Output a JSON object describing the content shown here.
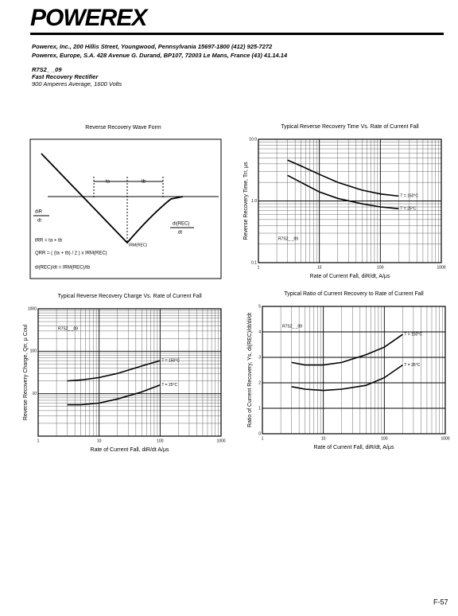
{
  "header": {
    "logo": "POWEREX",
    "address_lines": [
      "Powerex, Inc., 200 Hillis Street, Youngwood, Pennsylvania 15697-1800 (412) 925-7272",
      "Powerex, Europe, S.A. 428 Avenue G. Durand, BP107, 72003 Le Mans, France (43) 41.14.14"
    ]
  },
  "product": {
    "part": "R7S2_ _09",
    "name": "Fast Recovery Rectifier",
    "rating": "900 Amperes Average, 1600 Volts"
  },
  "waveform": {
    "title": "Reverse Recovery Wave Form",
    "ta": "ta",
    "tb": "tb",
    "di_r": "diR",
    "di_r_dt": "dt",
    "di_rec": "di(REC)",
    "di_rec_dt": "dt",
    "irm": "IRM(REC)",
    "formula_t": "tRR = ta + tb",
    "formula_q": "QRR = ( (ta + tb) / 2 ) x IRM(REC)",
    "formula_di": "di(REC)/dt = IRM(REC)/tb"
  },
  "chart_data": [
    {
      "type": "line",
      "title": "Typical Reverse Recovery Time Vs. Rate of Current Fall",
      "x_label": "Rate of Current Fall, diR/dt, A/μs",
      "y_label": "Reverse Recovery Time, Trr, μs",
      "xscale": "log",
      "yscale": "log",
      "xlim": [
        1,
        1000
      ],
      "ylim": [
        0.1,
        10
      ],
      "xticks": [
        1,
        10,
        100,
        1000
      ],
      "yticks": [
        0.1,
        {
          "value": 1,
          "label": "1.0"
        },
        {
          "value": 10,
          "label": "10.0"
        }
      ],
      "grid": true,
      "annotation": "R7S2_ _09",
      "series": [
        {
          "name": "T = 150°C",
          "color": "#000000",
          "x": [
            3,
            5,
            10,
            20,
            50,
            100,
            200
          ],
          "values": [
            4.6,
            3.7,
            2.7,
            2.0,
            1.5,
            1.3,
            1.2
          ]
        },
        {
          "name": "T = 25°C",
          "color": "#000000",
          "x": [
            3,
            5,
            10,
            20,
            50,
            100,
            200
          ],
          "values": [
            2.6,
            2.0,
            1.4,
            1.1,
            0.9,
            0.8,
            0.75
          ]
        }
      ]
    },
    {
      "type": "line",
      "title": "Typical Reverse Recovery Charge Vs. Rate of Current Fall",
      "x_label": "Rate of Current Fall, diR/dt A/μs",
      "y_label": "Reverse Recovery Charge, Qrr, μ Coul",
      "xscale": "log",
      "yscale": "log",
      "xlim": [
        1,
        1000
      ],
      "ylim": [
        1,
        1000
      ],
      "xticks": [
        1,
        10,
        100,
        1000
      ],
      "yticks": [
        10,
        100,
        1000
      ],
      "grid": true,
      "annotation": "R7S2_ _09",
      "series": [
        {
          "name": "T = 150°C",
          "color": "#000000",
          "x": [
            3,
            5,
            10,
            20,
            50,
            100
          ],
          "values": [
            20,
            21,
            24,
            30,
            45,
            60
          ]
        },
        {
          "name": "T = 25°C",
          "color": "#000000",
          "x": [
            3,
            5,
            10,
            20,
            50,
            100
          ],
          "values": [
            5.5,
            5.5,
            6,
            7.5,
            11,
            16
          ]
        }
      ]
    },
    {
      "type": "line",
      "title": "Typical Ratio of Current Recovery to Rate of Current Fall",
      "x_label": "Rate of Current Fall, diR/dt, A/μs",
      "y_label": "Ratio of Current Recovery, Ys, di(REC)/dt/di/dt",
      "xscale": "log",
      "yscale": "linear",
      "xlim": [
        1,
        1000
      ],
      "ylim": [
        0,
        5
      ],
      "xticks": [
        1,
        10,
        100,
        1000
      ],
      "yticks": [
        0,
        1,
        2,
        3,
        4,
        5
      ],
      "grid": true,
      "annotation": "R7S2_ _09",
      "series": [
        {
          "name": "T = 150°C",
          "color": "#000000",
          "x": [
            3,
            5,
            10,
            20,
            50,
            100,
            200
          ],
          "values": [
            2.8,
            2.7,
            2.7,
            2.8,
            3.1,
            3.4,
            3.9
          ]
        },
        {
          "name": "T = 25°C",
          "color": "#000000",
          "x": [
            3,
            5,
            10,
            20,
            50,
            100,
            200
          ],
          "values": [
            1.85,
            1.75,
            1.7,
            1.75,
            1.9,
            2.2,
            2.7
          ]
        }
      ]
    }
  ],
  "footer": {
    "page": "F-57"
  }
}
